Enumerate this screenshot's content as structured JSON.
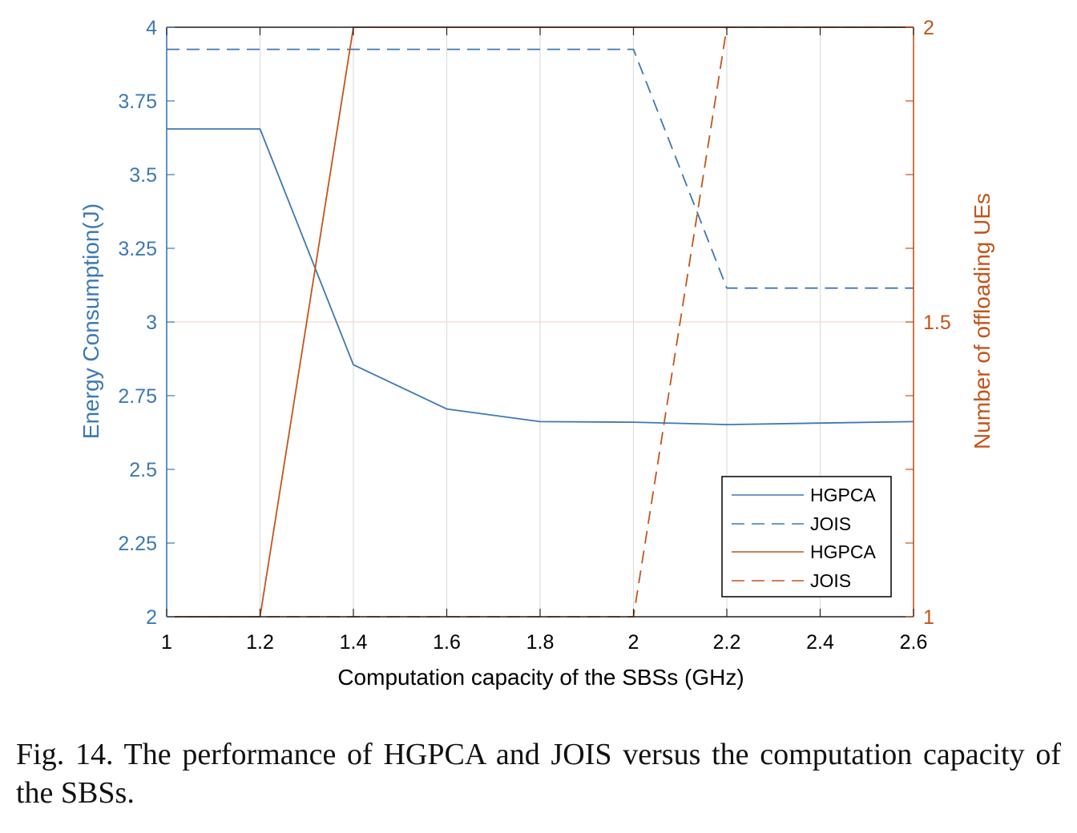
{
  "caption": "Fig. 14.    The performance of HGPCA and JOIS versus the computation capacity of the SBSs.",
  "chart_data": {
    "type": "line",
    "xlabel": "Computation capacity of the SBSs (GHz)",
    "ylabel": "Energy Consumption(J)",
    "ylabel_right": "Number of offloading UEs",
    "xlim": [
      1,
      2.6
    ],
    "ylim": [
      2,
      4
    ],
    "ylim_right": [
      1,
      2
    ],
    "x": [
      1,
      1.2,
      1.4,
      1.6,
      1.8,
      2,
      2.2,
      2.4,
      2.6
    ],
    "x_ticks": [
      "1",
      "1.2",
      "1.4",
      "1.6",
      "1.8",
      "2",
      "2.2",
      "2.4",
      "2.6"
    ],
    "y_ticks": [
      "2",
      "2.25",
      "2.5",
      "2.75",
      "3",
      "3.25",
      "3.5",
      "3.75",
      "4"
    ],
    "y_ticks_right": [
      "1",
      "1.5",
      "2"
    ],
    "grid": true,
    "legend_position": "bottom-right",
    "colors": {
      "left": "#3c78b4",
      "right": "#c4541a"
    },
    "series": [
      {
        "name": "HGPCA",
        "axis": "left",
        "style": "solid",
        "values": [
          3.655,
          3.655,
          2.855,
          2.705,
          2.662,
          2.66,
          2.652,
          2.657,
          2.662
        ]
      },
      {
        "name": "JOIS",
        "axis": "left",
        "style": "dashed",
        "values": [
          3.925,
          3.925,
          3.925,
          3.925,
          3.925,
          3.925,
          3.115,
          3.115,
          3.115
        ]
      },
      {
        "name": "HGPCA",
        "axis": "right",
        "style": "solid",
        "values": [
          1,
          1,
          2,
          2,
          2,
          2,
          2,
          2,
          2
        ]
      },
      {
        "name": "JOIS",
        "axis": "right",
        "style": "dashed",
        "values": [
          1,
          1,
          1,
          1,
          1,
          1,
          2,
          2,
          2
        ]
      }
    ]
  }
}
